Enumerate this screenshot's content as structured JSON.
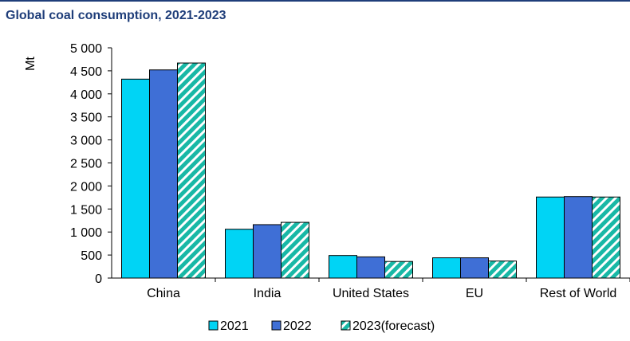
{
  "title": "Global coal consumption, 2021-2023",
  "chart_data": {
    "type": "bar",
    "title": "Global coal consumption, 2021-2023",
    "xlabel": "",
    "ylabel": "Mt",
    "ylim": [
      0,
      5000
    ],
    "yticks": [
      0,
      500,
      1000,
      1500,
      2000,
      2500,
      3000,
      3500,
      4000,
      4500,
      5000
    ],
    "ytick_labels": [
      "0",
      "500",
      "1 000",
      "1 500",
      "2 000",
      "2 500",
      "3 000",
      "3 500",
      "4 000",
      "4 500",
      "5 000"
    ],
    "categories": [
      "China",
      "India",
      "United States",
      "EU",
      "Rest of World"
    ],
    "series": [
      {
        "name": "2021",
        "values": [
          4320,
          1060,
          490,
          440,
          1760
        ],
        "color": "#00d4f5",
        "pattern": "solid"
      },
      {
        "name": "2022",
        "values": [
          4520,
          1160,
          460,
          440,
          1770
        ],
        "color": "#3f6fd6",
        "pattern": "solid"
      },
      {
        "name": "2023(forecast)",
        "values": [
          4670,
          1210,
          360,
          370,
          1760
        ],
        "color": "#18b8a6",
        "pattern": "diagonal-stripes"
      }
    ],
    "grid": false,
    "legend_position": "bottom"
  }
}
